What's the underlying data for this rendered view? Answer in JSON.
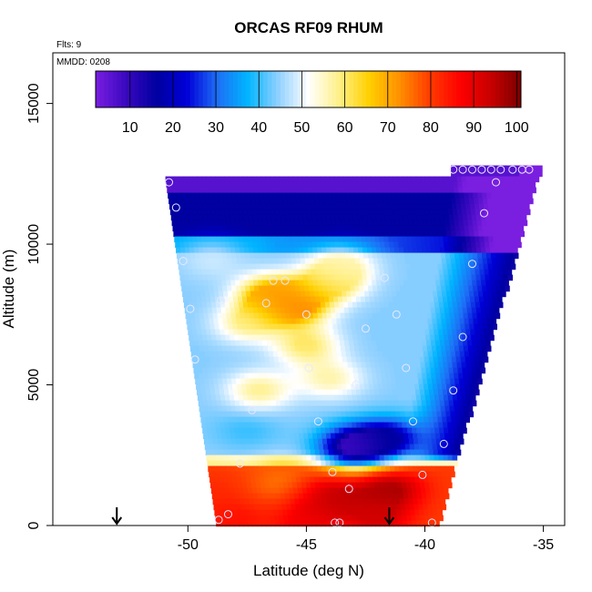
{
  "chart_data": {
    "type": "heatmap",
    "title": "ORCAS RF09 RHUM",
    "flights_label": "Flts: 9",
    "date_label": "MMDD: 0208",
    "xlabel": "Latitude (deg N)",
    "ylabel": "Altitude (m)",
    "xlim": [
      -55.7,
      -34.1
    ],
    "ylim": [
      0,
      16800
    ],
    "x_ticks": [
      -50,
      -45,
      -40,
      -35
    ],
    "x_tick_labels": [
      "-50",
      "-45",
      "-40",
      "-35"
    ],
    "y_ticks": [
      0,
      5000,
      10000,
      15000
    ],
    "y_tick_labels": [
      "0",
      "5000",
      "10000",
      "15000"
    ],
    "colorbar": {
      "range": [
        2,
        101
      ],
      "ticks": [
        10,
        20,
        30,
        40,
        50,
        60,
        70,
        80,
        90,
        100
      ],
      "tick_labels": [
        "10",
        "20",
        "30",
        "40",
        "50",
        "60",
        "70",
        "80",
        "90",
        "100"
      ],
      "colors": [
        "#7a1ee0",
        "#3a08c0",
        "#0000a0",
        "#0000d8",
        "#1e6ef5",
        "#00b4ff",
        "#8fd0ff",
        "#ffffff",
        "#fff08a",
        "#ffd000",
        "#ff9000",
        "#ff3c00",
        "#ff0000",
        "#c80000",
        "#7a0000"
      ]
    },
    "domain": {
      "top_left": [
        -51.0,
        12400
      ],
      "top_right": [
        -35.2,
        12800
      ],
      "bottom_left": [
        -48.8,
        0
      ],
      "bottom_right": [
        -39.5,
        0
      ]
    },
    "field_features": [
      {
        "lat": -45.5,
        "alt": 7800,
        "rh": 75
      },
      {
        "lat": -46.5,
        "alt": 8200,
        "rh": 70
      },
      {
        "lat": -44.0,
        "alt": 8600,
        "rh": 62
      },
      {
        "lat": -47.5,
        "alt": 7200,
        "rh": 58
      },
      {
        "lat": -45.0,
        "alt": 6400,
        "rh": 60
      },
      {
        "lat": -44.0,
        "alt": 5200,
        "rh": 56
      },
      {
        "lat": -47.0,
        "alt": 4800,
        "rh": 58
      },
      {
        "lat": -43.0,
        "alt": 2800,
        "rh": 8
      },
      {
        "lat": -41.5,
        "alt": 3100,
        "rh": 18
      },
      {
        "lat": -47.5,
        "alt": 3400,
        "rh": 40
      },
      {
        "lat": -49.0,
        "alt": 9400,
        "rh": 48
      },
      {
        "lat": -43.5,
        "alt": 9200,
        "rh": 55
      },
      {
        "lat": -49.0,
        "alt": 1200,
        "rh": 82
      },
      {
        "lat": -46.0,
        "alt": 1500,
        "rh": 75
      },
      {
        "lat": -44.0,
        "alt": 1000,
        "rh": 95
      },
      {
        "lat": -41.5,
        "alt": 1300,
        "rh": 97
      },
      {
        "lat": -42.0,
        "alt": 300,
        "rh": 92
      },
      {
        "lat": -48.0,
        "alt": 200,
        "rh": 85
      },
      {
        "lat": -45.0,
        "alt": 100,
        "rh": 88
      }
    ],
    "observations": [
      {
        "lat": -50.8,
        "alt": 12200
      },
      {
        "lat": -50.5,
        "alt": 11300
      },
      {
        "lat": -50.2,
        "alt": 9400
      },
      {
        "lat": -49.9,
        "alt": 7700
      },
      {
        "lat": -49.7,
        "alt": 5900
      },
      {
        "lat": -48.6,
        "alt": 8000
      },
      {
        "lat": -46.7,
        "alt": 7900
      },
      {
        "lat": -46.4,
        "alt": 8700
      },
      {
        "lat": -45.9,
        "alt": 8700
      },
      {
        "lat": -45.0,
        "alt": 7500
      },
      {
        "lat": -44.9,
        "alt": 5600
      },
      {
        "lat": -44.5,
        "alt": 3700
      },
      {
        "lat": -43.9,
        "alt": 1900
      },
      {
        "lat": -43.2,
        "alt": 1300
      },
      {
        "lat": -42.9,
        "alt": 5000
      },
      {
        "lat": -42.5,
        "alt": 7000
      },
      {
        "lat": -41.7,
        "alt": 8800
      },
      {
        "lat": -41.2,
        "alt": 7500
      },
      {
        "lat": -40.8,
        "alt": 5600
      },
      {
        "lat": -40.5,
        "alt": 3700
      },
      {
        "lat": -40.1,
        "alt": 1800
      },
      {
        "lat": -39.7,
        "alt": 100
      },
      {
        "lat": -39.2,
        "alt": 2900
      },
      {
        "lat": -38.8,
        "alt": 4800
      },
      {
        "lat": -38.4,
        "alt": 6700
      },
      {
        "lat": -38.0,
        "alt": 9300
      },
      {
        "lat": -37.5,
        "alt": 11100
      },
      {
        "lat": -37.0,
        "alt": 12200
      },
      {
        "lat": -47.8,
        "alt": 2200
      },
      {
        "lat": -47.3,
        "alt": 4100
      },
      {
        "lat": -48.3,
        "alt": 400
      },
      {
        "lat": -48.7,
        "alt": 200
      },
      {
        "lat": -43.6,
        "alt": 100
      },
      {
        "lat": -43.8,
        "alt": 100
      },
      {
        "lat": -38.8,
        "alt": 12650
      },
      {
        "lat": -38.4,
        "alt": 12650
      },
      {
        "lat": -38.0,
        "alt": 12650
      },
      {
        "lat": -37.6,
        "alt": 12650
      },
      {
        "lat": -37.2,
        "alt": 12650
      },
      {
        "lat": -36.8,
        "alt": 12650
      },
      {
        "lat": -36.3,
        "alt": 12650
      },
      {
        "lat": -35.9,
        "alt": 12650
      },
      {
        "lat": -35.6,
        "alt": 12650
      }
    ],
    "arrows": [
      {
        "lat": -53.0,
        "alt": 0
      },
      {
        "lat": -41.5,
        "alt": 0
      }
    ],
    "grid": false
  }
}
